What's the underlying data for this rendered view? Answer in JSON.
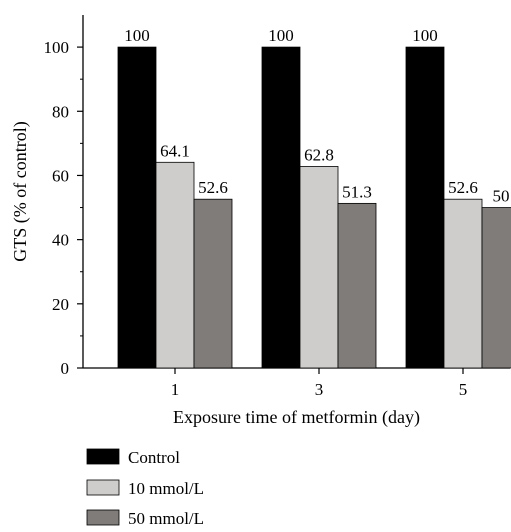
{
  "chart_data": {
    "type": "bar",
    "categories": [
      "1",
      "3",
      "5"
    ],
    "series": [
      {
        "name": "Control",
        "values": [
          100,
          100,
          100
        ],
        "labels": [
          "100",
          "100",
          "100"
        ],
        "color": "#000000"
      },
      {
        "name": "10 mmol/L",
        "values": [
          64.1,
          62.8,
          52.6
        ],
        "labels": [
          "64.1",
          "62.8",
          "52.6"
        ],
        "color": "#cfcdcb"
      },
      {
        "name": "50 mmol/L",
        "values": [
          52.6,
          51.3,
          50
        ],
        "labels": [
          "52.6",
          "51.3",
          "50"
        ],
        "color": "#7f7c79"
      }
    ],
    "xlabel": "Exposure time of metformin (day)",
    "ylabel": "GTS (% of control)",
    "ylim": [
      0,
      110
    ],
    "yticks": [
      "0",
      "20",
      "40",
      "60",
      "80",
      "100"
    ],
    "grid": false,
    "legend_position": "bottom-left"
  }
}
